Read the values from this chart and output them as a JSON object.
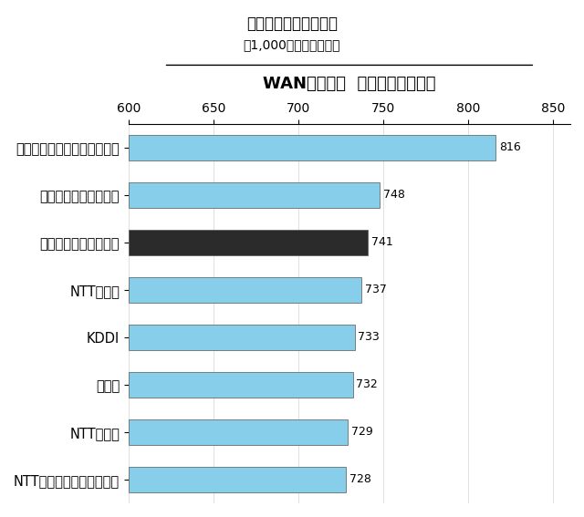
{
  "title": "顧客満足度ランキング",
  "subtitle": "（1,000ポイント満点）",
  "axis_title": "WANサービス  中堅中小企業市場",
  "categories": [
    "NTTコミュニケーションズ",
    "NTT西日本",
    "富士通",
    "KDDI",
    "NTT東日本",
    "中堅中小企業市場平均",
    "ソフトバンクテレコム",
    "中部テレコミュニケーション"
  ],
  "values": [
    728,
    729,
    732,
    733,
    737,
    741,
    748,
    816
  ],
  "bar_colors": [
    "#87CEEB",
    "#87CEEB",
    "#87CEEB",
    "#87CEEB",
    "#87CEEB",
    "#2b2b2b",
    "#87CEEB",
    "#87CEEB"
  ],
  "xlim": [
    600,
    860
  ],
  "xticks": [
    600,
    650,
    700,
    750,
    800,
    850
  ],
  "background_color": "#ffffff",
  "bar_edgecolor": "#555555",
  "label_fontsize": 9,
  "title_fontsize": 12,
  "subtitle_fontsize": 10,
  "axis_title_fontsize": 13
}
